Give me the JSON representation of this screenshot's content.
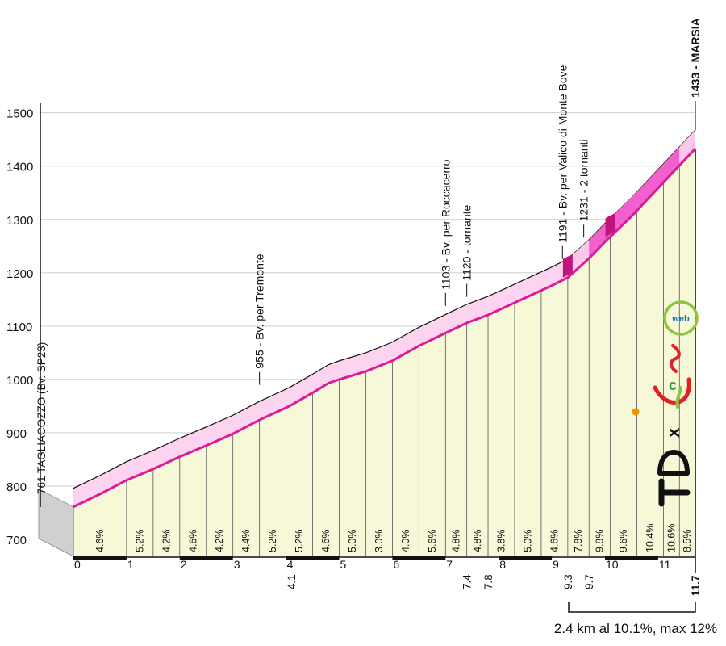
{
  "chart_data": {
    "type": "area",
    "ylim": [
      700,
      1500
    ],
    "yticks": [
      "1500",
      "1400",
      "1300",
      "1200",
      "1100",
      "1000",
      "900",
      "800",
      "700"
    ],
    "x_ticks": [
      "0",
      "1",
      "2",
      "3",
      "4",
      "5",
      "6",
      "7",
      "8",
      "9",
      "10",
      "11"
    ],
    "x_extra_ticks": [
      "4.1",
      "7.4",
      "7.8",
      "9.3",
      "9.7",
      "11.7"
    ],
    "profile": [
      {
        "km": 0,
        "alt": 761
      },
      {
        "km": 0.5,
        "alt": 785
      },
      {
        "km": 1,
        "alt": 811
      },
      {
        "km": 1.5,
        "alt": 832
      },
      {
        "km": 2,
        "alt": 855
      },
      {
        "km": 2.5,
        "alt": 876
      },
      {
        "km": 3,
        "alt": 898
      },
      {
        "km": 3.5,
        "alt": 924
      },
      {
        "km": 4,
        "alt": 947
      },
      {
        "km": 4.1,
        "alt": 952
      },
      {
        "km": 4.5,
        "alt": 975
      },
      {
        "km": 4.8,
        "alt": 993
      },
      {
        "km": 5,
        "alt": 1000
      },
      {
        "km": 5.5,
        "alt": 1015
      },
      {
        "km": 6,
        "alt": 1035
      },
      {
        "km": 6.5,
        "alt": 1063
      },
      {
        "km": 7,
        "alt": 1087
      },
      {
        "km": 7.4,
        "alt": 1106
      },
      {
        "km": 7.8,
        "alt": 1121
      },
      {
        "km": 8,
        "alt": 1130
      },
      {
        "km": 8.5,
        "alt": 1153
      },
      {
        "km": 9,
        "alt": 1176
      },
      {
        "km": 9.3,
        "alt": 1191
      },
      {
        "km": 9.7,
        "alt": 1227
      },
      {
        "km": 10,
        "alt": 1258
      },
      {
        "km": 10.5,
        "alt": 1306
      },
      {
        "km": 11,
        "alt": 1359
      },
      {
        "km": 11.7,
        "alt": 1433
      }
    ],
    "segments": [
      {
        "from": 0,
        "to": 1,
        "grade": "4.6%"
      },
      {
        "from": 1,
        "to": 1.5,
        "grade": "5.2%"
      },
      {
        "from": 1.5,
        "to": 2,
        "grade": "4.2%"
      },
      {
        "from": 2,
        "to": 2.5,
        "grade": "4.6%"
      },
      {
        "from": 2.5,
        "to": 3,
        "grade": "4.2%"
      },
      {
        "from": 3,
        "to": 3.5,
        "grade": "4.4%"
      },
      {
        "from": 3.5,
        "to": 4,
        "grade": "5.2%"
      },
      {
        "from": 4,
        "to": 4.5,
        "grade": "5.2%"
      },
      {
        "from": 4.5,
        "to": 5,
        "grade": "4.6%"
      },
      {
        "from": 5,
        "to": 5.5,
        "grade": "5.0%"
      },
      {
        "from": 5.5,
        "to": 6,
        "grade": "3.0%"
      },
      {
        "from": 6,
        "to": 6.5,
        "grade": "4.0%"
      },
      {
        "from": 6.5,
        "to": 7,
        "grade": "5.6%"
      },
      {
        "from": 7,
        "to": 7.4,
        "grade": "4.8%"
      },
      {
        "from": 7.4,
        "to": 7.8,
        "grade": "4.8%"
      },
      {
        "from": 7.8,
        "to": 8.3,
        "grade": "3.8%"
      },
      {
        "from": 8.3,
        "to": 8.8,
        "grade": "5.0%"
      },
      {
        "from": 8.8,
        "to": 9.3,
        "grade": "4.6%"
      },
      {
        "from": 9.3,
        "to": 9.7,
        "grade": "7.8%"
      },
      {
        "from": 9.7,
        "to": 10.1,
        "grade": "9.8%"
      },
      {
        "from": 10.1,
        "to": 10.6,
        "grade": "9.6%"
      },
      {
        "from": 10.6,
        "to": 11.1,
        "grade": "10.4%"
      },
      {
        "from": 11.1,
        "to": 11.4,
        "grade": "10.6%"
      },
      {
        "from": 11.4,
        "to": 11.7,
        "grade": "8.5%"
      }
    ],
    "waypoints": [
      {
        "km": 0,
        "alt": 761,
        "label": "761 TAGLIACOZZO (Bv. SP23)"
      },
      {
        "km": 3.5,
        "alt": 955,
        "label": "955 - Bv. per Tremonte"
      },
      {
        "km": 7.0,
        "alt": 1103,
        "label": "1103 - Bv. per Roccacerro"
      },
      {
        "km": 7.4,
        "alt": 1120,
        "label": "1120 - tornante"
      },
      {
        "km": 9.2,
        "alt": 1191,
        "label": "1191 - Bv. per Valico di Monte Bove"
      },
      {
        "km": 9.6,
        "alt": 1231,
        "label": "1231 - 2 tornanti"
      },
      {
        "km": 11.7,
        "alt": 1433,
        "label": "1433 - MARSIA"
      }
    ],
    "climb_note": "2.4 km al 10.1%, max 12%",
    "colors": {
      "fill": "#f7f8d8",
      "side": "#fcd4ef",
      "road_light": "#fbc8ec",
      "road_steep": "#f25fcf",
      "road_dark": "#c0157a",
      "edge": "#dd1a97"
    }
  },
  "logo": {
    "text": "TD x icl web",
    "colors": {
      "red": "#e01f26",
      "green": "#2a9d3a",
      "orange": "#f39200",
      "blue": "#1f74b8",
      "yellowgreen": "#8cc63f"
    }
  }
}
